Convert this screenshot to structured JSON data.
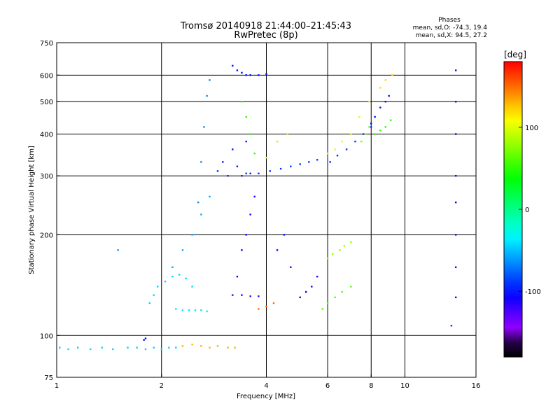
{
  "chart_data": {
    "type": "scatter",
    "title": "Tromsø 20140918 21:44:00–21:45:43",
    "subtitle": "RwPretec (8p)",
    "stats": {
      "heading": "Phases",
      "line_o": "mean, sd,O: -74.3, 19.4",
      "line_x": "mean, sd,X:  94.5, 27.2"
    },
    "xlabel": "Frequency [MHz]",
    "ylabel": "Stationary phase Virtual Height [km]",
    "x_scale": "log",
    "y_scale": "log",
    "xlim": [
      1,
      16
    ],
    "ylim": [
      75,
      750
    ],
    "x_ticks": [
      1,
      2,
      4,
      6,
      8,
      10,
      16
    ],
    "x_tick_labels": [
      "1",
      "2",
      "4",
      "6",
      "8",
      "10",
      "16"
    ],
    "y_ticks": [
      75,
      100,
      200,
      300,
      400,
      500,
      600,
      750
    ],
    "y_tick_labels": [
      "75",
      "100",
      "200",
      "300",
      "400",
      "500",
      "600",
      "750"
    ],
    "x_gridlines": [
      2,
      4,
      6,
      8,
      10
    ],
    "y_gridlines": [
      100,
      200,
      300,
      400,
      500,
      600
    ],
    "grid": true,
    "colorbar": {
      "label": "[deg]",
      "range": [
        -180,
        180
      ],
      "ticks": [
        100,
        0,
        -100
      ],
      "tick_labels": [
        "100",
        "0",
        "-100"
      ]
    },
    "series": [
      {
        "x": [
          1.02,
          1.08,
          1.15,
          1.25,
          1.35,
          1.45,
          1.6,
          1.7,
          1.8,
          1.9,
          2.0,
          2.1,
          2.2
        ],
        "y": [
          92,
          91,
          92,
          91,
          92,
          91,
          92,
          92,
          91,
          92,
          91,
          92,
          92
        ],
        "phase": -45
      },
      {
        "x": [
          2.3,
          2.45,
          2.6,
          2.75,
          2.9,
          3.1,
          3.25
        ],
        "y": [
          93,
          94,
          93,
          92,
          93,
          92,
          92
        ],
        "phase": 130
      },
      {
        "x": [
          1.85,
          1.9,
          1.95,
          2.05,
          2.15,
          2.25,
          2.35,
          2.45
        ],
        "y": [
          125,
          132,
          140,
          145,
          150,
          152,
          148,
          140
        ],
        "phase": -45
      },
      {
        "x": [
          2.2,
          2.3,
          2.4,
          2.5,
          2.6,
          2.7
        ],
        "y": [
          120,
          119,
          119,
          119,
          119,
          118
        ],
        "phase": -40
      },
      {
        "x": [
          2.55,
          2.6,
          2.65,
          2.7,
          2.75
        ],
        "y": [
          250,
          330,
          420,
          520,
          580
        ],
        "phase": -65
      },
      {
        "x": [
          2.15,
          2.3,
          2.45,
          2.6,
          2.75
        ],
        "y": [
          160,
          180,
          200,
          230,
          260
        ],
        "phase": -55
      },
      {
        "x": [
          2.9,
          3.0,
          3.1,
          3.2,
          3.3,
          3.4,
          3.5,
          3.6
        ],
        "y": [
          310,
          330,
          300,
          360,
          320,
          300,
          380,
          305
        ],
        "phase": -95
      },
      {
        "x": [
          3.5,
          3.8,
          4.1,
          4.4,
          4.7,
          5.0,
          5.3,
          5.6
        ],
        "y": [
          305,
          305,
          310,
          315,
          320,
          325,
          330,
          335
        ],
        "phase": -90
      },
      {
        "x": [
          3.2,
          3.3,
          3.4,
          3.5,
          3.6,
          3.8,
          4.0
        ],
        "y": [
          640,
          620,
          610,
          600,
          600,
          600,
          605
        ],
        "phase": -100
      },
      {
        "x": [
          3.4,
          3.5,
          3.6,
          3.7
        ],
        "y": [
          500,
          450,
          400,
          350
        ],
        "phase": 50
      },
      {
        "x": [
          3.3,
          3.4,
          3.5,
          3.6,
          3.7
        ],
        "y": [
          150,
          180,
          200,
          230,
          260
        ],
        "phase": -110
      },
      {
        "x": [
          3.2,
          3.4,
          3.6,
          3.8
        ],
        "y": [
          132,
          132,
          131,
          131
        ],
        "phase": -120
      },
      {
        "x": [
          3.8,
          4.0,
          4.2
        ],
        "y": [
          120,
          122,
          125
        ],
        "phase": 150
      },
      {
        "x": [
          4.3,
          4.5,
          4.7
        ],
        "y": [
          180,
          200,
          160
        ],
        "phase": -100
      },
      {
        "x": [
          4.0,
          4.3,
          4.6
        ],
        "y": [
          340,
          380,
          400
        ],
        "phase": 90
      },
      {
        "x": [
          5.0,
          5.2,
          5.4,
          5.6
        ],
        "y": [
          130,
          135,
          140,
          150
        ],
        "phase": -110
      },
      {
        "x": [
          5.8,
          6.0,
          6.3,
          6.6,
          7.0
        ],
        "y": [
          120,
          125,
          130,
          135,
          140
        ],
        "phase": 60
      },
      {
        "x": [
          6.0,
          6.2,
          6.5,
          6.7,
          7.0
        ],
        "y": [
          170,
          175,
          180,
          185,
          190
        ],
        "phase": 80
      },
      {
        "x": [
          6.0,
          6.3,
          6.6,
          7.0,
          7.4,
          7.9
        ],
        "y": [
          350,
          360,
          380,
          400,
          450,
          500
        ],
        "phase": 100
      },
      {
        "x": [
          6.1,
          6.4,
          6.8,
          7.2,
          7.6,
          8.0
        ],
        "y": [
          330,
          345,
          360,
          380,
          400,
          420
        ],
        "phase": -90
      },
      {
        "x": [
          7.5,
          7.7,
          7.9
        ],
        "y": [
          380,
          400,
          420
        ],
        "phase": 70
      },
      {
        "x": [
          8.0,
          8.2,
          8.5,
          8.8,
          9.0
        ],
        "y": [
          430,
          450,
          480,
          500,
          520
        ],
        "phase": -100
      },
      {
        "x": [
          8.2,
          8.5,
          8.8,
          9.1
        ],
        "y": [
          400,
          410,
          420,
          440
        ],
        "phase": 50
      },
      {
        "x": [
          8.5,
          8.8,
          9.2
        ],
        "y": [
          550,
          580,
          600
        ],
        "phase": 120
      },
      {
        "x": [
          14.0,
          14.0,
          14.0,
          14.0,
          14.0,
          14.0,
          14.0,
          14.0
        ],
        "y": [
          620,
          500,
          400,
          300,
          250,
          200,
          160,
          130
        ],
        "phase": -100
      },
      {
        "x": [
          13.6
        ],
        "y": [
          107
        ],
        "phase": -90
      },
      {
        "x": [
          1.5
        ],
        "y": [
          180
        ],
        "phase": -60
      },
      {
        "x": [
          1.78,
          1.8
        ],
        "y": [
          97,
          98
        ],
        "phase": -100
      }
    ]
  }
}
